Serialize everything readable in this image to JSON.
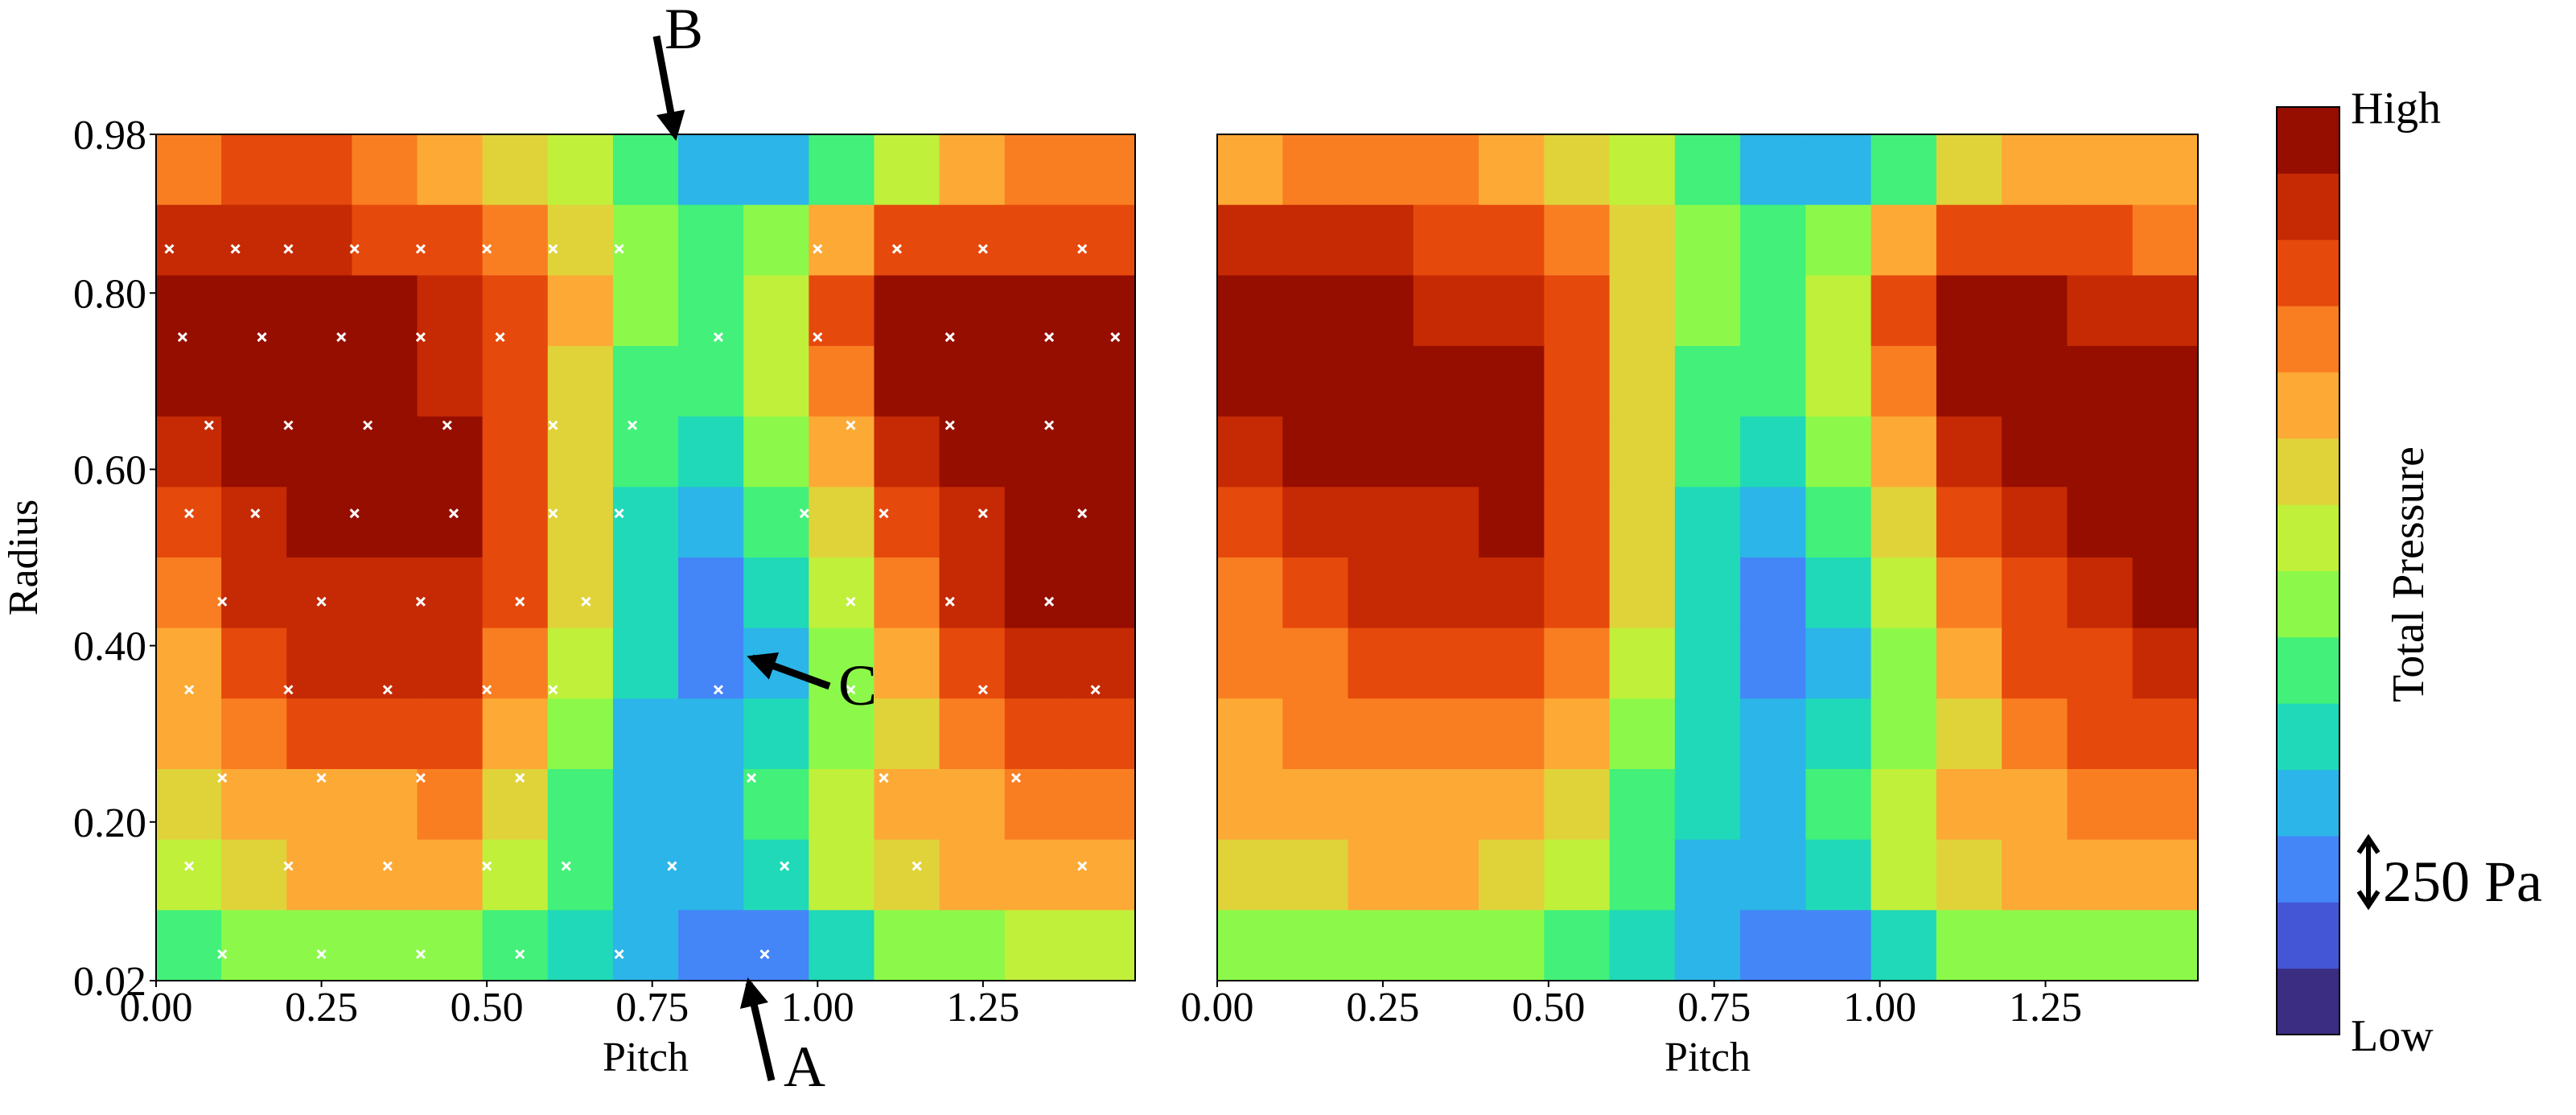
{
  "chart_data": [
    {
      "type": "contour",
      "x_label": "Pitch",
      "y_label": "Radius",
      "xlim": [
        0,
        1.48
      ],
      "ylim": [
        0.02,
        0.98
      ],
      "xticks": [
        {
          "value": 0,
          "label": "0.00"
        },
        0.25,
        {
          "value": 0.5,
          "label": "0.50"
        },
        0.75,
        {
          "value": 1,
          "label": "1.00"
        },
        1.25
      ],
      "yticks": [
        0.02,
        {
          "value": 0.2,
          "label": "0.20"
        },
        {
          "value": 0.4,
          "label": "0.40"
        },
        {
          "value": 0.6,
          "label": "0.60"
        },
        {
          "value": 0.8,
          "label": "0.80"
        },
        0.98
      ],
      "z": [
        [
          10,
          11,
          11,
          10,
          9,
          8,
          7,
          5,
          3,
          3,
          5,
          7,
          9,
          10,
          10
        ],
        [
          12,
          12,
          12,
          11,
          11,
          10,
          8,
          6,
          5,
          6,
          9,
          11,
          11,
          11,
          11
        ],
        [
          13,
          13,
          13,
          13,
          12,
          11,
          9,
          6,
          5,
          7,
          11,
          13,
          13,
          13,
          13
        ],
        [
          13,
          13,
          13,
          13,
          12,
          11,
          8,
          5,
          5,
          7,
          10,
          13,
          13,
          13,
          13
        ],
        [
          12,
          13,
          13,
          13,
          13,
          11,
          8,
          5,
          4,
          6,
          9,
          12,
          13,
          13,
          13
        ],
        [
          11,
          12,
          13,
          13,
          13,
          11,
          8,
          4,
          3,
          5,
          8,
          11,
          12,
          13,
          13
        ],
        [
          10,
          12,
          12,
          12,
          12,
          11,
          8,
          4,
          2,
          4,
          7,
          10,
          12,
          13,
          13
        ],
        [
          9,
          11,
          12,
          12,
          12,
          10,
          7,
          4,
          2,
          3,
          6,
          9,
          11,
          12,
          12
        ],
        [
          9,
          10,
          11,
          11,
          11,
          9,
          6,
          3,
          3,
          4,
          6,
          8,
          10,
          11,
          11
        ],
        [
          8,
          9,
          9,
          9,
          10,
          8,
          5,
          3,
          3,
          5,
          7,
          9,
          9,
          10,
          10
        ],
        [
          7,
          8,
          9,
          9,
          9,
          7,
          5,
          3,
          3,
          4,
          7,
          8,
          9,
          9,
          9
        ],
        [
          5,
          6,
          6,
          6,
          6,
          5,
          4,
          3,
          2,
          2,
          4,
          6,
          6,
          7,
          7
        ]
      ],
      "markers": {
        "marker": "x",
        "color": "#ffffff",
        "x": [
          0.02,
          0.12,
          0.2,
          0.3,
          0.4,
          0.5,
          0.6,
          0.7,
          1.0,
          1.12,
          1.25,
          1.4,
          0.04,
          0.16,
          0.28,
          0.4,
          0.52,
          0.85,
          1.0,
          1.2,
          1.35,
          1.45,
          0.08,
          0.2,
          0.32,
          0.44,
          0.6,
          0.72,
          1.05,
          1.2,
          1.35,
          0.05,
          0.15,
          0.3,
          0.45,
          0.6,
          0.7,
          0.98,
          1.1,
          1.25,
          1.4,
          0.1,
          0.25,
          0.4,
          0.55,
          0.65,
          1.05,
          1.2,
          1.35,
          0.05,
          0.2,
          0.35,
          0.5,
          0.6,
          0.85,
          1.05,
          1.25,
          1.42,
          0.1,
          0.25,
          0.4,
          0.55,
          0.9,
          1.1,
          1.3,
          0.05,
          0.2,
          0.35,
          0.5,
          0.62,
          0.78,
          0.95,
          1.15,
          1.4,
          0.1,
          0.25,
          0.4,
          0.55,
          0.7,
          0.92
        ],
        "y": [
          0.85,
          0.85,
          0.85,
          0.85,
          0.85,
          0.85,
          0.85,
          0.85,
          0.85,
          0.85,
          0.85,
          0.85,
          0.75,
          0.75,
          0.75,
          0.75,
          0.75,
          0.75,
          0.75,
          0.75,
          0.75,
          0.75,
          0.65,
          0.65,
          0.65,
          0.65,
          0.65,
          0.65,
          0.65,
          0.65,
          0.65,
          0.55,
          0.55,
          0.55,
          0.55,
          0.55,
          0.55,
          0.55,
          0.55,
          0.55,
          0.55,
          0.45,
          0.45,
          0.45,
          0.45,
          0.45,
          0.45,
          0.45,
          0.45,
          0.35,
          0.35,
          0.35,
          0.35,
          0.35,
          0.35,
          0.35,
          0.35,
          0.35,
          0.25,
          0.25,
          0.25,
          0.25,
          0.25,
          0.25,
          0.25,
          0.15,
          0.15,
          0.15,
          0.15,
          0.15,
          0.15,
          0.15,
          0.15,
          0.15,
          0.05,
          0.05,
          0.05,
          0.05,
          0.05,
          0.05
        ]
      },
      "annotations": [
        "A",
        "B",
        "C"
      ]
    },
    {
      "type": "contour",
      "x_label": "Pitch",
      "xlim": [
        0,
        1.48
      ],
      "ylim": [
        0.02,
        0.98
      ],
      "xticks": [
        {
          "value": 0,
          "label": "0.00"
        },
        0.25,
        {
          "value": 0.5,
          "label": "0.50"
        },
        0.75,
        {
          "value": 1,
          "label": "1.00"
        },
        1.25
      ],
      "z": [
        [
          9,
          10,
          10,
          10,
          9,
          8,
          7,
          5,
          3,
          3,
          5,
          8,
          9,
          9,
          9
        ],
        [
          12,
          12,
          12,
          11,
          11,
          10,
          8,
          6,
          5,
          6,
          9,
          11,
          11,
          11,
          10
        ],
        [
          13,
          13,
          13,
          12,
          12,
          11,
          8,
          6,
          5,
          7,
          11,
          13,
          13,
          12,
          12
        ],
        [
          13,
          13,
          13,
          13,
          13,
          11,
          8,
          5,
          5,
          7,
          10,
          13,
          13,
          13,
          13
        ],
        [
          12,
          13,
          13,
          13,
          13,
          11,
          8,
          5,
          4,
          6,
          9,
          12,
          13,
          13,
          13
        ],
        [
          11,
          12,
          12,
          12,
          13,
          11,
          8,
          4,
          3,
          5,
          8,
          11,
          12,
          13,
          13
        ],
        [
          10,
          11,
          12,
          12,
          12,
          11,
          8,
          4,
          2,
          4,
          7,
          10,
          11,
          12,
          13
        ],
        [
          10,
          10,
          11,
          11,
          11,
          10,
          7,
          4,
          2,
          3,
          6,
          9,
          11,
          11,
          12
        ],
        [
          9,
          10,
          10,
          10,
          10,
          9,
          6,
          4,
          3,
          4,
          6,
          8,
          10,
          11,
          11
        ],
        [
          9,
          9,
          9,
          9,
          9,
          8,
          5,
          4,
          3,
          5,
          7,
          9,
          9,
          10,
          10
        ],
        [
          8,
          8,
          9,
          9,
          8,
          7,
          5,
          3,
          3,
          4,
          7,
          8,
          9,
          9,
          9
        ],
        [
          6,
          6,
          6,
          6,
          6,
          5,
          4,
          3,
          2,
          2,
          4,
          6,
          6,
          6,
          6
        ]
      ]
    }
  ],
  "colorbar": {
    "label": "Total Pressure",
    "high": "High",
    "low": "Low",
    "scale": "250 Pa",
    "colors": [
      "#3b2d82",
      "#4456d6",
      "#4485f8",
      "#2cb5e8",
      "#20d9b8",
      "#42f07a",
      "#8cf94a",
      "#c0f03a",
      "#e0d33a",
      "#fcaa35",
      "#f97e22",
      "#e6490c",
      "#c52a04",
      "#960e00"
    ]
  }
}
